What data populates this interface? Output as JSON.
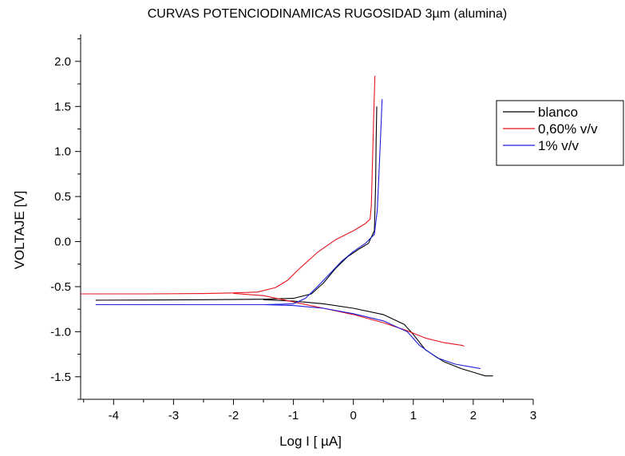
{
  "chart_data": {
    "type": "line",
    "title": "CURVAS POTENCIODINAMICAS RUGOSIDAD 3µm (alumina)",
    "xlabel": "Log I [ µA]",
    "ylabel": "VOLTAJE [V]",
    "xlim": [
      -4.55,
      3.0
    ],
    "ylim": [
      -1.75,
      2.3
    ],
    "xticks": [
      -4,
      -3,
      -2,
      -1,
      0,
      1,
      2,
      3
    ],
    "yticks": [
      -1.5,
      -1.0,
      -0.5,
      0.0,
      0.5,
      1.0,
      1.5,
      2.0
    ],
    "xtick_labels": [
      "-4",
      "-3",
      "-2",
      "-1",
      "0",
      "1",
      "2",
      "3"
    ],
    "ytick_labels": [
      "-1.5",
      "-1.0",
      "-0.5",
      "0.0",
      "0.5",
      "1.0",
      "1.5",
      "2.0"
    ],
    "grid": false,
    "legend_position": "top-right",
    "series": [
      {
        "name": "blanco",
        "color": "#000000",
        "anodic": [
          [
            -4.3,
            -0.65
          ],
          [
            -3.5,
            -0.648
          ],
          [
            -2.5,
            -0.645
          ],
          [
            -1.5,
            -0.64
          ],
          [
            -1.0,
            -0.63
          ],
          [
            -0.7,
            -0.58
          ],
          [
            -0.5,
            -0.46
          ],
          [
            -0.3,
            -0.3
          ],
          [
            -0.1,
            -0.17
          ],
          [
            0.1,
            -0.08
          ],
          [
            0.25,
            -0.02
          ],
          [
            0.35,
            0.12
          ],
          [
            0.37,
            0.6
          ],
          [
            0.38,
            1.1
          ],
          [
            0.39,
            1.5
          ]
        ],
        "cathodic": [
          [
            -1.5,
            -0.645
          ],
          [
            -1.0,
            -0.66
          ],
          [
            -0.5,
            -0.69
          ],
          [
            0.0,
            -0.74
          ],
          [
            0.5,
            -0.81
          ],
          [
            0.85,
            -0.92
          ],
          [
            1.0,
            -1.03
          ],
          [
            1.2,
            -1.2
          ],
          [
            1.5,
            -1.33
          ],
          [
            1.8,
            -1.41
          ],
          [
            2.0,
            -1.45
          ],
          [
            2.2,
            -1.49
          ],
          [
            2.33,
            -1.49
          ]
        ]
      },
      {
        "name": "0,60% v/v",
        "color": "#e8141c",
        "anodic": [
          [
            -4.55,
            -0.58
          ],
          [
            -3.5,
            -0.58
          ],
          [
            -2.5,
            -0.577
          ],
          [
            -2.0,
            -0.57
          ],
          [
            -1.6,
            -0.56
          ],
          [
            -1.3,
            -0.51
          ],
          [
            -1.1,
            -0.43
          ],
          [
            -0.9,
            -0.3
          ],
          [
            -0.6,
            -0.12
          ],
          [
            -0.3,
            0.02
          ],
          [
            0.0,
            0.12
          ],
          [
            0.2,
            0.2
          ],
          [
            0.28,
            0.25
          ],
          [
            0.3,
            0.4
          ],
          [
            0.32,
            0.9
          ],
          [
            0.34,
            1.4
          ],
          [
            0.36,
            1.84
          ]
        ],
        "cathodic": [
          [
            -2.0,
            -0.575
          ],
          [
            -1.5,
            -0.6
          ],
          [
            -1.0,
            -0.67
          ],
          [
            -0.5,
            -0.74
          ],
          [
            0.0,
            -0.81
          ],
          [
            0.5,
            -0.9
          ],
          [
            0.9,
            -0.99
          ],
          [
            1.2,
            -1.07
          ],
          [
            1.5,
            -1.12
          ],
          [
            1.8,
            -1.15
          ],
          [
            1.85,
            -1.16
          ]
        ]
      },
      {
        "name": "1% v/v",
        "color": "#1c1ce0",
        "anodic": [
          [
            -4.3,
            -0.7
          ],
          [
            -3.5,
            -0.7
          ],
          [
            -2.5,
            -0.7
          ],
          [
            -1.5,
            -0.7
          ],
          [
            -1.0,
            -0.69
          ],
          [
            -0.8,
            -0.63
          ],
          [
            -0.6,
            -0.5
          ],
          [
            -0.4,
            -0.36
          ],
          [
            -0.2,
            -0.22
          ],
          [
            0.0,
            -0.11
          ],
          [
            0.2,
            -0.02
          ],
          [
            0.35,
            0.08
          ],
          [
            0.4,
            0.35
          ],
          [
            0.43,
            0.8
          ],
          [
            0.46,
            1.25
          ],
          [
            0.48,
            1.58
          ]
        ],
        "cathodic": [
          [
            -1.5,
            -0.7
          ],
          [
            -1.0,
            -0.71
          ],
          [
            -0.5,
            -0.74
          ],
          [
            0.0,
            -0.8
          ],
          [
            0.5,
            -0.88
          ],
          [
            0.9,
            -1.0
          ],
          [
            1.1,
            -1.15
          ],
          [
            1.4,
            -1.29
          ],
          [
            1.7,
            -1.36
          ],
          [
            2.0,
            -1.395
          ],
          [
            2.12,
            -1.41
          ]
        ]
      }
    ]
  }
}
